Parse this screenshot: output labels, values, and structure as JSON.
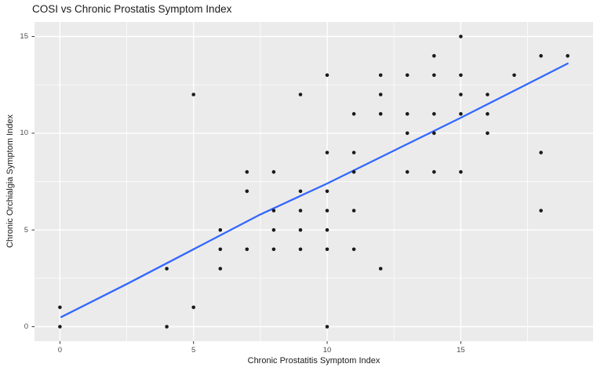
{
  "chart_data": {
    "type": "scatter",
    "title": "COSI vs Chronic Prostatis Symptom Index",
    "xlabel": "Chronic Prostatitis Symptom Index",
    "ylabel": "Chronic Orchialgia Symptom Index",
    "xlim": [
      -0.95,
      19.95
    ],
    "ylim": [
      -0.75,
      15.75
    ],
    "x_ticks": [
      0,
      5,
      10,
      15
    ],
    "y_ticks": [
      0,
      5,
      10,
      15
    ],
    "x_minor_ticks": [
      2.5,
      7.5,
      12.5,
      17.5
    ],
    "y_minor_ticks": [
      2.5,
      7.5,
      12.5
    ],
    "grid": "white major and minor gridlines on gray panel",
    "legend_position": "none",
    "points": [
      [
        0,
        0
      ],
      [
        0,
        1
      ],
      [
        4,
        0
      ],
      [
        4,
        3
      ],
      [
        5,
        1
      ],
      [
        5,
        12
      ],
      [
        6,
        3
      ],
      [
        6,
        4
      ],
      [
        6,
        5
      ],
      [
        7,
        4
      ],
      [
        7,
        7
      ],
      [
        7,
        8
      ],
      [
        8,
        4
      ],
      [
        8,
        5
      ],
      [
        8,
        6
      ],
      [
        8,
        8
      ],
      [
        9,
        4
      ],
      [
        9,
        5
      ],
      [
        9,
        6
      ],
      [
        9,
        7
      ],
      [
        9,
        12
      ],
      [
        10,
        0
      ],
      [
        10,
        4
      ],
      [
        10,
        5
      ],
      [
        10,
        6
      ],
      [
        10,
        7
      ],
      [
        10,
        9
      ],
      [
        10,
        13
      ],
      [
        11,
        4
      ],
      [
        11,
        6
      ],
      [
        11,
        8
      ],
      [
        11,
        9
      ],
      [
        11,
        11
      ],
      [
        12,
        3
      ],
      [
        12,
        11
      ],
      [
        12,
        12
      ],
      [
        12,
        13
      ],
      [
        13,
        8
      ],
      [
        13,
        10
      ],
      [
        13,
        11
      ],
      [
        13,
        13
      ],
      [
        14,
        8
      ],
      [
        14,
        10
      ],
      [
        14,
        11
      ],
      [
        14,
        13
      ],
      [
        14,
        14
      ],
      [
        15,
        8
      ],
      [
        15,
        11
      ],
      [
        15,
        12
      ],
      [
        15,
        13
      ],
      [
        15,
        15
      ],
      [
        16,
        10
      ],
      [
        16,
        11
      ],
      [
        16,
        12
      ],
      [
        17,
        13
      ],
      [
        18,
        6
      ],
      [
        18,
        9
      ],
      [
        18,
        14
      ],
      [
        19,
        14
      ]
    ],
    "smooth_line": [
      [
        0.05,
        0.5
      ],
      [
        2.5,
        2.2
      ],
      [
        5,
        4.0
      ],
      [
        7.5,
        5.8
      ],
      [
        10,
        7.4
      ],
      [
        12.5,
        9.1
      ],
      [
        15,
        10.8
      ],
      [
        17,
        12.2
      ],
      [
        19,
        13.6
      ]
    ]
  },
  "style": {
    "page_bg": "#FFFFFF",
    "panel_bg": "#EBEBEB",
    "grid_color": "#FFFFFF",
    "point_color": "#1A1A1A",
    "line_color": "#3366FF",
    "tick_mark_color": "#333333",
    "tick_label_color": "#4D4D4D",
    "title_color": "#1A1A1A",
    "axis_title_color": "#1A1A1A"
  }
}
